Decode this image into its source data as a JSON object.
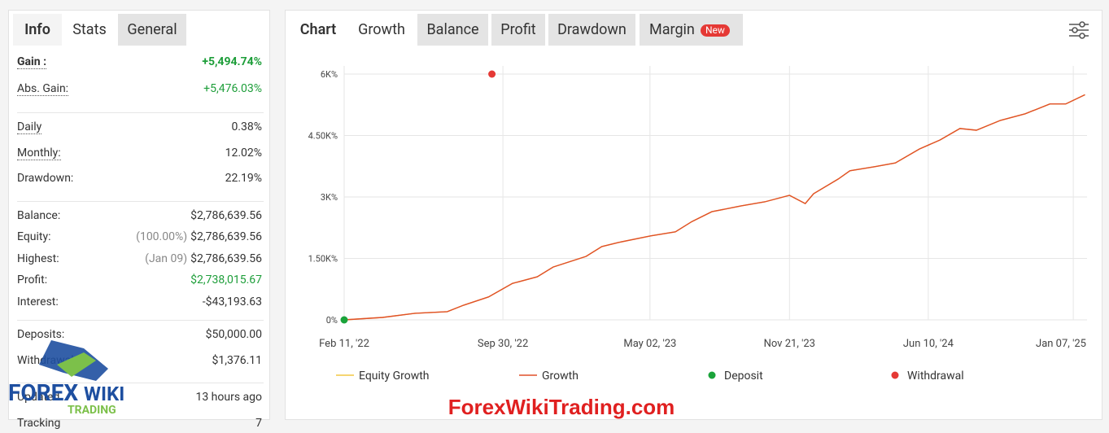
{
  "sidebar": {
    "tabs": [
      "Info",
      "Stats",
      "General"
    ],
    "groups": [
      [
        {
          "label": "Gain :",
          "value": "+5,494.74%",
          "color": "#1e9e3a",
          "bold": true,
          "underline": true
        },
        {
          "label": "Abs. Gain:",
          "value": "+5,476.03%",
          "color": "#1e9e3a",
          "underline": true
        }
      ],
      [
        {
          "label": "Daily",
          "value": "0.38%",
          "underline": true
        },
        {
          "label": "Monthly:",
          "value": "12.02%",
          "underline": true
        },
        {
          "label": "Drawdown:",
          "value": "22.19%"
        }
      ],
      [
        {
          "label": "Balance:",
          "value": "$2,786,639.56"
        },
        {
          "label": "Equity:",
          "note": "(100.00%)",
          "value": "$2,786,639.56"
        },
        {
          "label": "Highest:",
          "note": "(Jan 09)",
          "value": "$2,786,639.56"
        },
        {
          "label": "Profit:",
          "value": "$2,738,015.67",
          "color": "#1e9e3a"
        },
        {
          "label": "Interest:",
          "value": "-$43,193.63"
        }
      ],
      [
        {
          "label": "Deposits:",
          "value": "$50,000.00"
        },
        {
          "label": "Withdrawals:",
          "value": "$1,376.11"
        }
      ],
      [
        {
          "label": "Updated",
          "value": "13 hours ago"
        },
        {
          "label": "Tracking",
          "value": "7"
        }
      ]
    ]
  },
  "tabs": [
    "Chart",
    "Growth",
    "Balance",
    "Profit",
    "Drawdown",
    "Margin"
  ],
  "badge": "New",
  "chart_data": {
    "type": "line",
    "x": [
      "2022-02-11",
      "2022-04-08",
      "2022-05-25",
      "2022-07-11",
      "2022-08-04",
      "2022-09-09",
      "2022-10-14",
      "2022-11-19",
      "2022-12-12",
      "2023-01-29",
      "2023-02-21",
      "2023-03-17",
      "2023-05-03",
      "2023-06-08",
      "2023-07-02",
      "2023-07-31",
      "2023-09-11",
      "2023-10-16",
      "2023-11-21",
      "2023-12-14",
      "2023-12-26",
      "2024-01-31",
      "2024-02-17",
      "2024-03-24",
      "2024-04-23",
      "2024-05-28",
      "2024-06-27",
      "2024-07-26",
      "2024-08-19",
      "2024-09-23",
      "2024-10-29",
      "2024-12-04",
      "2024-12-27",
      "2025-01-24"
    ],
    "series": [
      {
        "name": "Equity Growth",
        "color": "#f2c744",
        "values": [
          0,
          60,
          160,
          200,
          360,
          560,
          890,
          1050,
          1290,
          1550,
          1790,
          1890,
          2050,
          2150,
          2400,
          2640,
          2780,
          2880,
          3040,
          2840,
          3080,
          3440,
          3640,
          3740,
          3830,
          4170,
          4390,
          4670,
          4630,
          4870,
          5030,
          5270,
          5270,
          5495
        ]
      },
      {
        "name": "Growth",
        "color": "#e0502a",
        "values": [
          0,
          60,
          160,
          200,
          360,
          560,
          890,
          1050,
          1290,
          1550,
          1790,
          1890,
          2050,
          2150,
          2400,
          2640,
          2780,
          2880,
          3040,
          2840,
          3080,
          3440,
          3640,
          3740,
          3830,
          4170,
          4390,
          4670,
          4630,
          4870,
          5030,
          5270,
          5270,
          5495
        ]
      }
    ],
    "markers": [
      {
        "name": "Deposit",
        "color": "#1aa33a",
        "x": "2022-02-11",
        "value": 0
      },
      {
        "name": "Withdrawal",
        "color": "#e53935",
        "x": "2022-09-14",
        "value": 6000
      }
    ],
    "xlim": [
      "2022-02-11",
      "2025-01-27"
    ],
    "xticks": [
      {
        "value": "2022-02-11",
        "label": "Feb 11, '22"
      },
      {
        "value": "2022-09-30",
        "label": "Sep 30, '22"
      },
      {
        "value": "2023-05-02",
        "label": "May 02, '23"
      },
      {
        "value": "2023-11-21",
        "label": "Nov 21, '23"
      },
      {
        "value": "2024-06-10",
        "label": "Jun 10, '24"
      },
      {
        "value": "2025-01-07",
        "label": "Jan 07, '25"
      }
    ],
    "ylim": [
      0,
      6000
    ],
    "yticks": [
      {
        "value": 0,
        "label": "0%"
      },
      {
        "value": 1500,
        "label": "1.50K%"
      },
      {
        "value": 3000,
        "label": "3K%"
      },
      {
        "value": 4500,
        "label": "4.50K%"
      },
      {
        "value": 6000,
        "label": "6K%"
      }
    ],
    "grid": true
  },
  "watermark": "ForexWikiTrading.com",
  "logo": {
    "top": "FOREX",
    "mid": "WIKI",
    "sub": "TRADING"
  }
}
